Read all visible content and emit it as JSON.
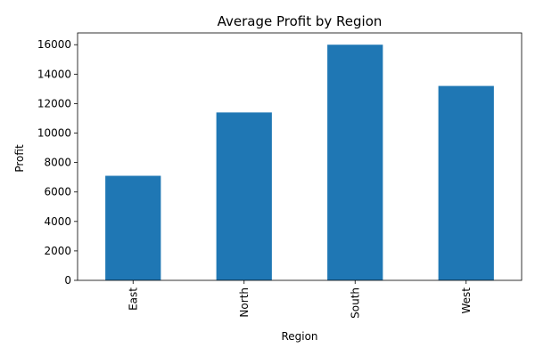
{
  "chart_data": {
    "type": "bar",
    "title": "Average Profit by Region",
    "xlabel": "Region",
    "ylabel": "Profit",
    "categories": [
      "East",
      "North",
      "South",
      "West"
    ],
    "values": [
      7100,
      11400,
      16000,
      13200
    ],
    "ylim": [
      0,
      16800
    ],
    "yticks": [
      0,
      2000,
      4000,
      6000,
      8000,
      10000,
      12000,
      14000,
      16000
    ],
    "bar_color": "#1f77b4",
    "xtick_rotation": "vertical",
    "grid": false,
    "legend": "none"
  }
}
